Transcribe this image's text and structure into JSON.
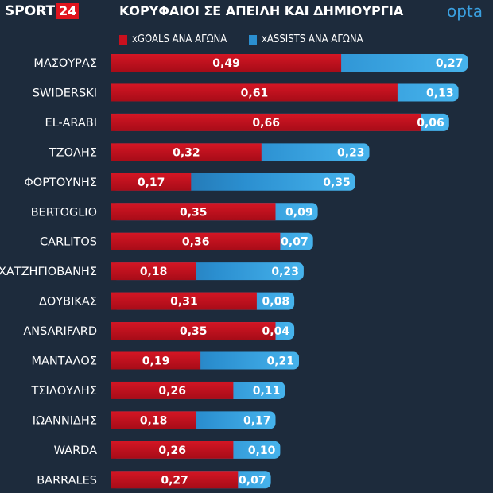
{
  "header": {
    "brand": "SPORT",
    "brand_num": "24",
    "title": "ΚΟΡΥΦΑΙΟΙ ΣΕ ΑΠΕΙΛΗ ΚΑΙ ΔΗΜΙΟΥΡΓΙΑ",
    "partner": "opta"
  },
  "colors": {
    "goals": "#c8101e",
    "assists": "#2b8fd0",
    "background": "#1d2b3c"
  },
  "chart_data": {
    "type": "bar",
    "orientation": "horizontal",
    "stacked": true,
    "title": "ΚΟΡΥΦΑΙΟΙ ΣΕ ΑΠΕΙΛΗ ΚΑΙ ΔΗΜΙΟΥΡΓΙΑ",
    "legend_position": "top",
    "categories": [
      "ΜΑΣΟΥΡΑΣ",
      "SWIDERSKI",
      "EL-ARABI",
      "ΤΖΟΛΗΣ",
      "ΦΟΡΤΟΥΝΗΣ",
      "BERTOGLIO",
      "CARLITOS",
      "ΧΑΤΖΗΓΙΟΒΑΝΗΣ",
      "ΔΟΥΒΙΚΑΣ",
      "ANSARIFARD",
      "ΜΑΝΤΑΛΟΣ",
      "ΤΣΙΛΟΥΛΗΣ",
      "ΙΩΑΝΝΙΔΗΣ",
      "WARDA",
      "BARRALES"
    ],
    "series": [
      {
        "name": "xGOALS ΑΝΑ ΑΓΩΝΑ",
        "values": [
          0.49,
          0.61,
          0.66,
          0.32,
          0.17,
          0.35,
          0.36,
          0.18,
          0.31,
          0.35,
          0.19,
          0.26,
          0.18,
          0.26,
          0.27
        ],
        "labels": [
          "0,49",
          "0,61",
          "0,66",
          "0,32",
          "0,17",
          "0,35",
          "0,36",
          "0,18",
          "0,31",
          "0,35",
          "0,19",
          "0,26",
          "0,18",
          "0,26",
          "0,27"
        ]
      },
      {
        "name": "xASSISTS ΑΝΑ ΑΓΩΝΑ",
        "values": [
          0.27,
          0.13,
          0.06,
          0.23,
          0.35,
          0.09,
          0.07,
          0.23,
          0.08,
          0.04,
          0.21,
          0.11,
          0.17,
          0.1,
          0.07
        ],
        "labels": [
          "0,27",
          "0,13",
          "0,06",
          "0,23",
          "0,35",
          "0,09",
          "0,07",
          "0,23",
          "0,08",
          "0,04",
          "0,21",
          "0,11",
          "0,17",
          "0,10",
          "0,07"
        ]
      }
    ]
  }
}
